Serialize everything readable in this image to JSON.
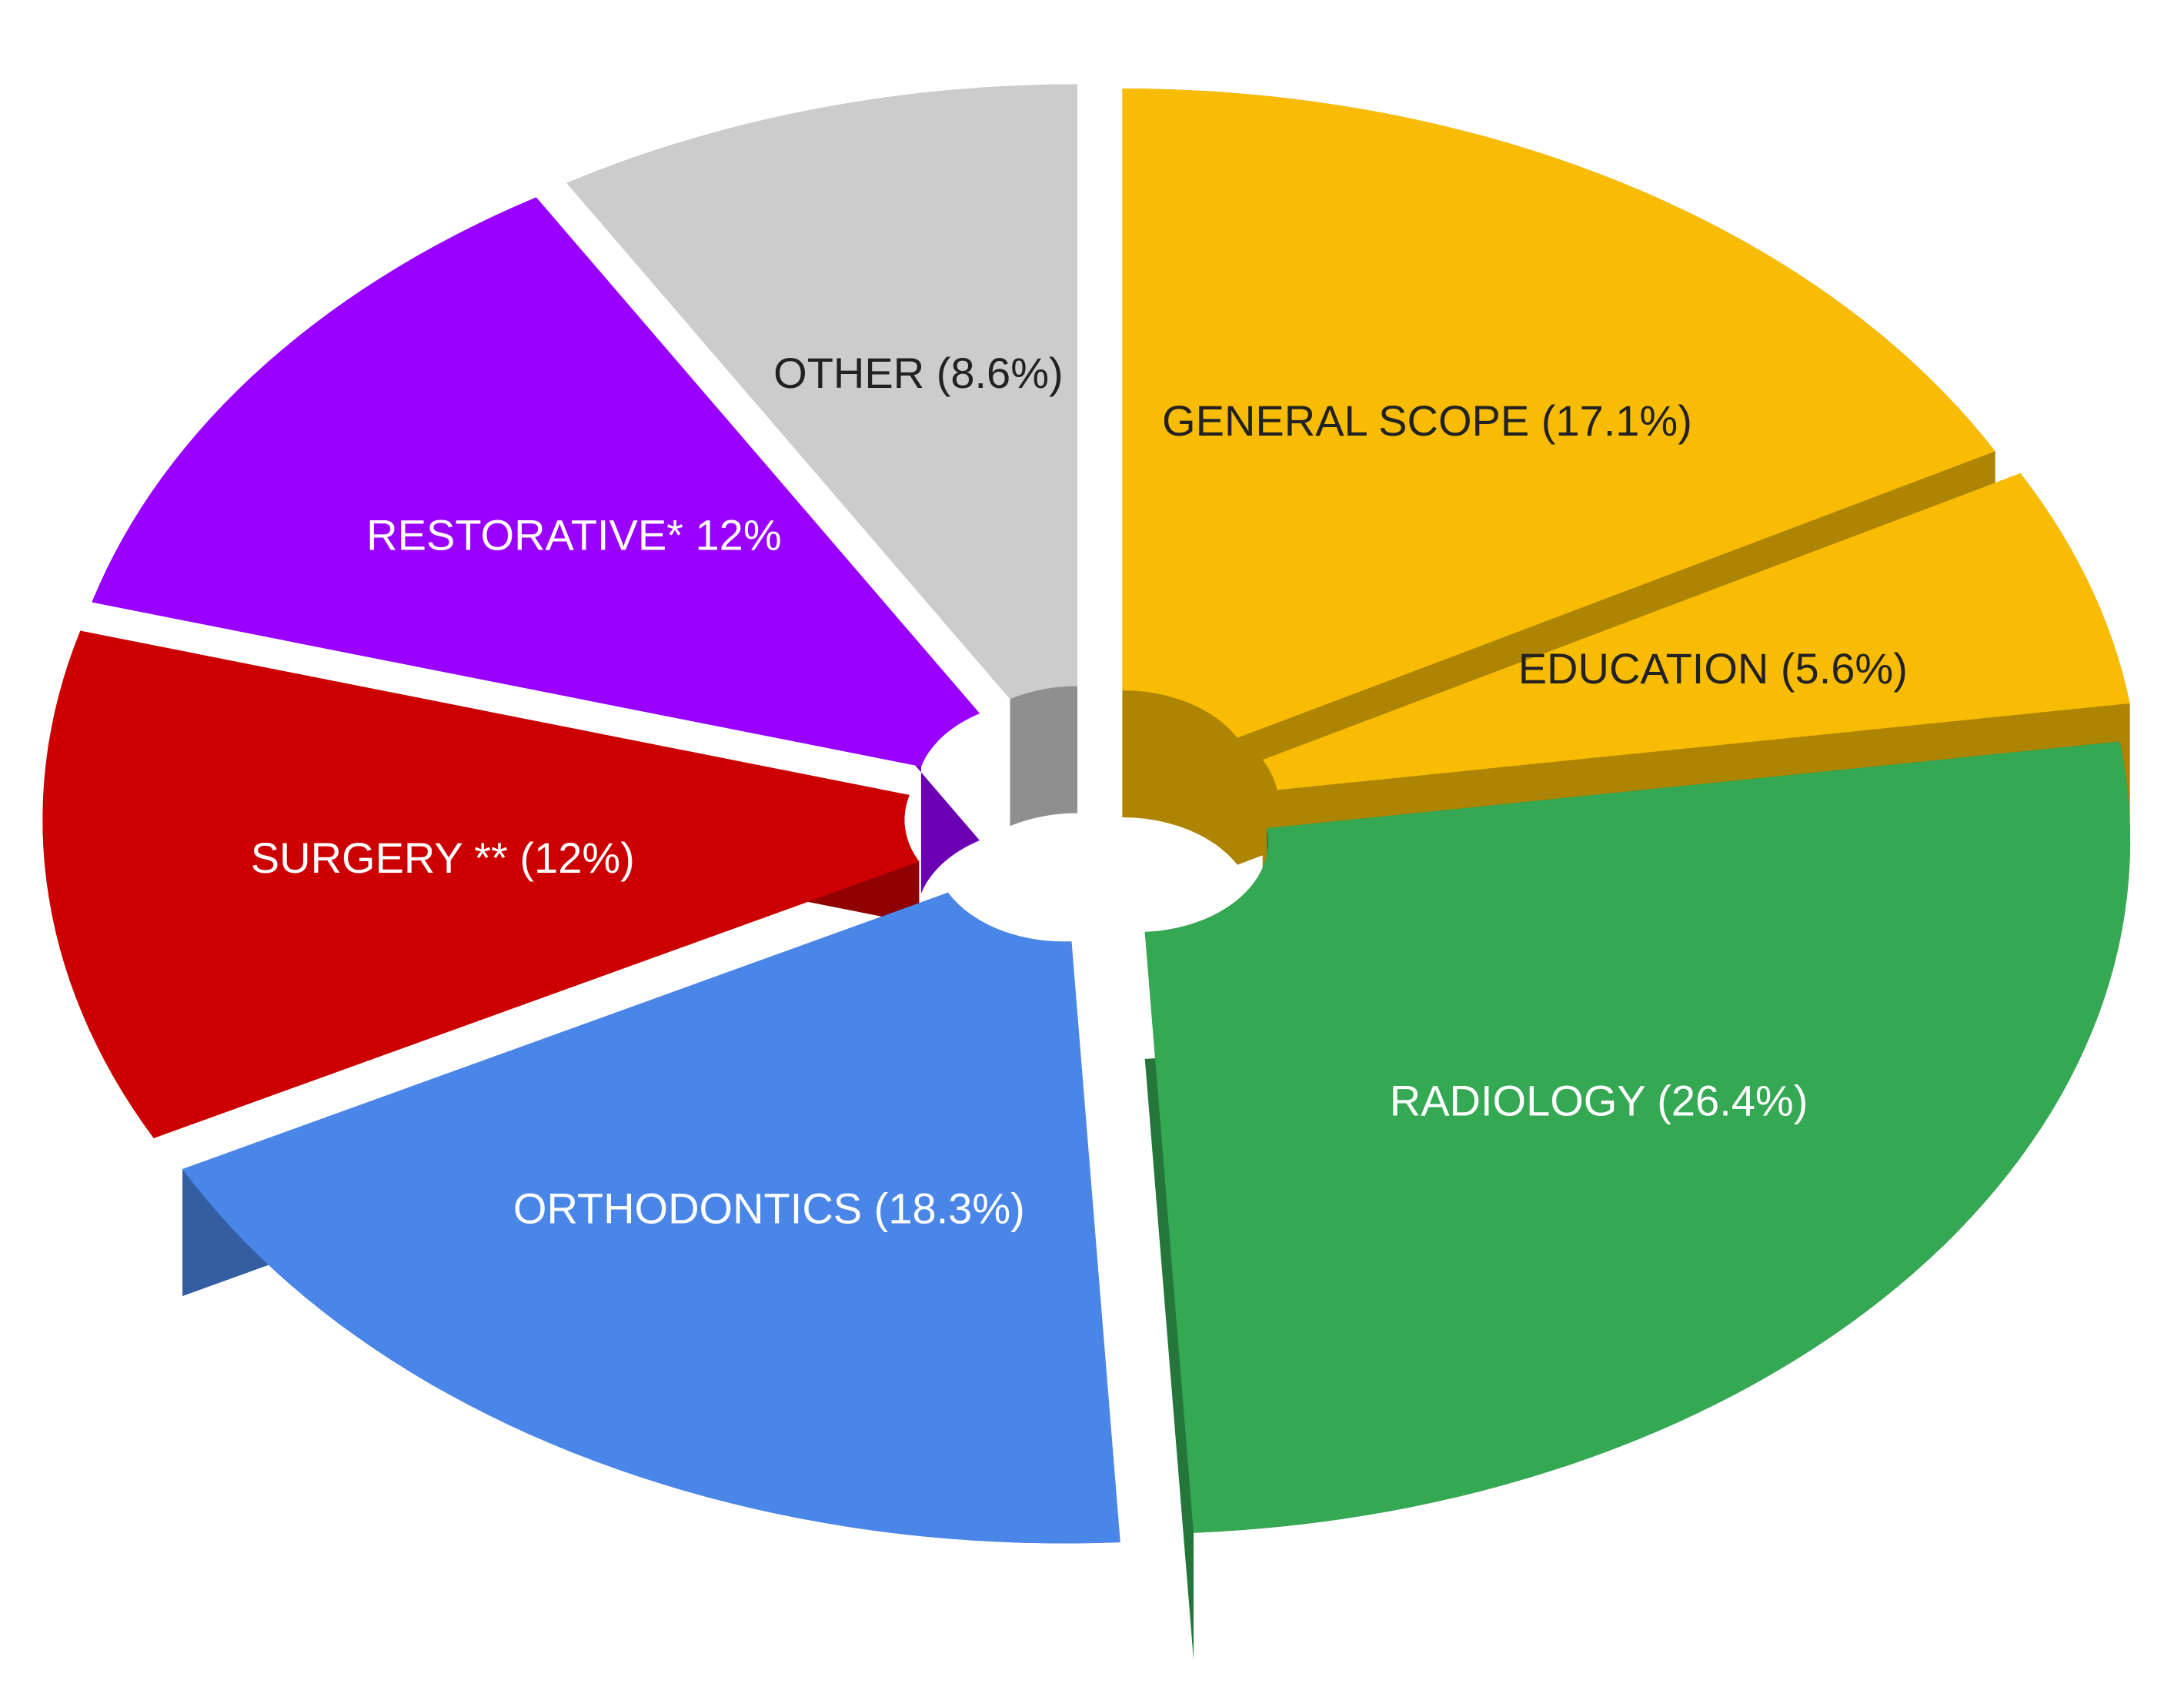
{
  "chart_data": {
    "type": "pie3d",
    "categories": [
      "GENERAL SCOPE (17.1%)",
      "EDUCATION (5.6%)",
      "RADIOLOGY (26.4%)",
      "ORTHODONTICS (18.3%)",
      "SURGERY ** (12%)",
      "RESTORATIVE* 12%",
      "OTHER (8.6%)"
    ],
    "values": [
      17.1,
      5.6,
      26.4,
      18.3,
      12,
      12,
      8.6
    ],
    "colors": [
      "#f9bc05",
      "#f9bc05",
      "#34a853",
      "#4a86e8",
      "#cc0000",
      "#9900ff",
      "#cccccc"
    ]
  }
}
